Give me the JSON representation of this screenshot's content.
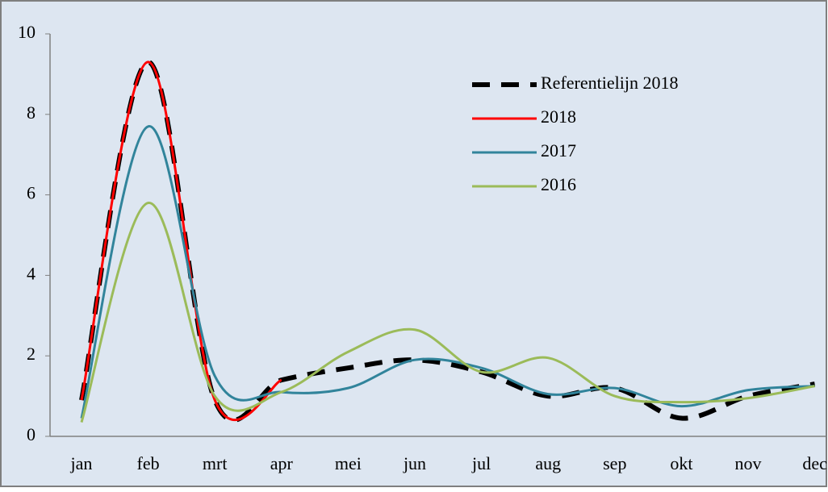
{
  "chart_data": {
    "type": "line",
    "categories": [
      "jan",
      "feb",
      "mrt",
      "apr",
      "mei",
      "jun",
      "jul",
      "aug",
      "sep",
      "okt",
      "nov",
      "dec"
    ],
    "series": [
      {
        "name": "Referentielijn 2018",
        "color": "#000000",
        "dashed": true,
        "values": [
          0.9,
          9.3,
          0.9,
          1.4,
          1.7,
          1.9,
          1.6,
          1.0,
          1.2,
          0.45,
          1.0,
          1.3
        ]
      },
      {
        "name": "2018",
        "color": "#ff0000",
        "values": [
          0.9,
          9.3,
          0.9,
          1.4,
          null,
          null,
          null,
          null,
          null,
          null,
          null,
          null
        ]
      },
      {
        "name": "2017",
        "color": "#31849b",
        "values": [
          0.45,
          7.7,
          1.5,
          1.1,
          1.2,
          1.9,
          1.7,
          1.05,
          1.2,
          0.75,
          1.15,
          1.25
        ]
      },
      {
        "name": "2016",
        "color": "#9bbb59",
        "values": [
          0.35,
          5.8,
          1.0,
          1.1,
          2.1,
          2.65,
          1.6,
          1.95,
          1.0,
          0.85,
          0.95,
          1.25
        ]
      }
    ],
    "ylim": [
      0,
      10
    ],
    "yticks": [
      0,
      2,
      4,
      6,
      8,
      10
    ],
    "grid": false,
    "legend": "upper right"
  }
}
